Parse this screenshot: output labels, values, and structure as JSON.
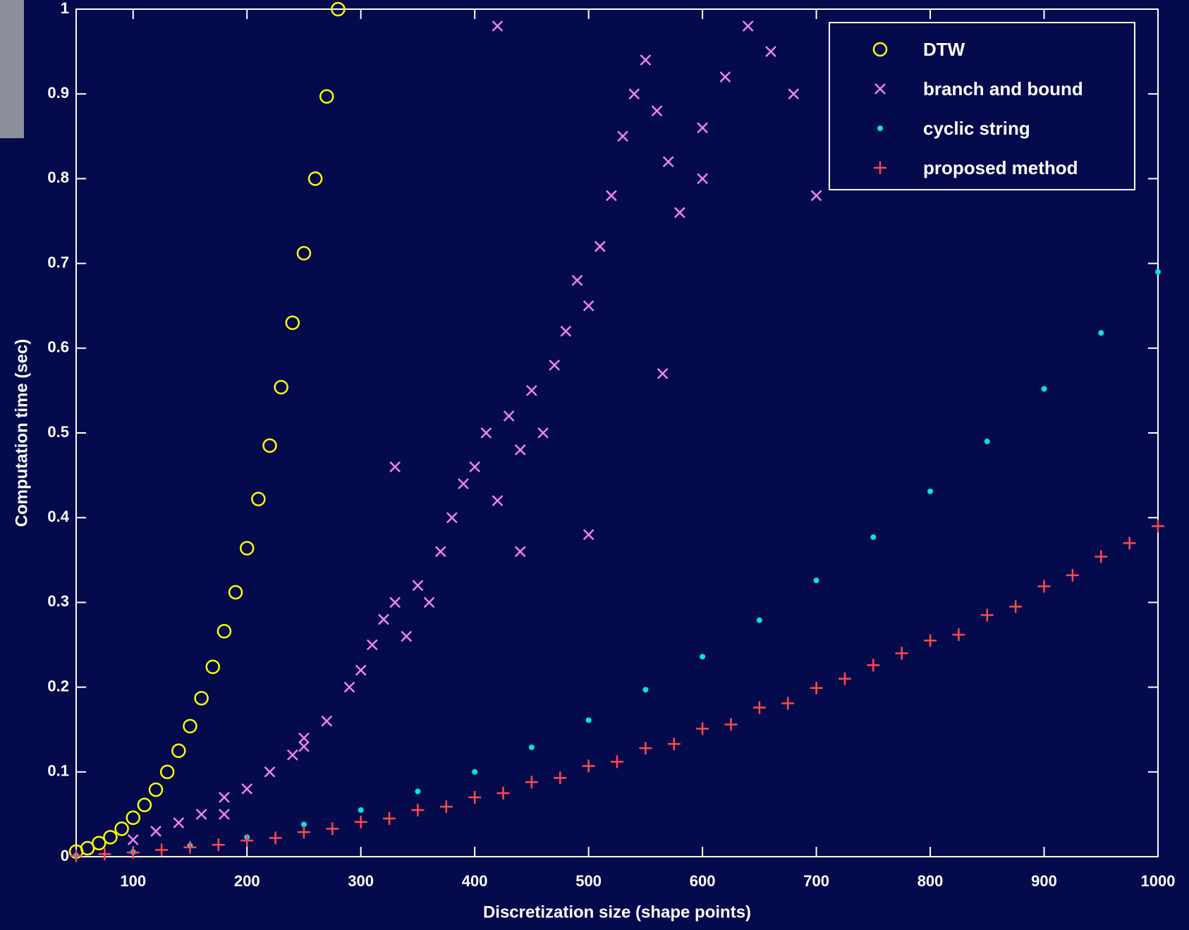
{
  "chart_data": {
    "type": "scatter",
    "x_label": "Discretization size (shape points)",
    "y_label": "Computation time (sec)",
    "xlim": [
      50,
      1000
    ],
    "ylim": [
      0,
      1
    ],
    "xticks": [
      100,
      200,
      300,
      400,
      500,
      600,
      700,
      800,
      900,
      1000
    ],
    "yticks": [
      0,
      0.1,
      0.2,
      0.3,
      0.4,
      0.5,
      0.6,
      0.7,
      0.8,
      0.9,
      1
    ],
    "legend": "upper right",
    "series": [
      {
        "name": "DTW",
        "color": "#ffff00",
        "marker": "circle",
        "x": [
          50,
          60,
          70,
          80,
          90,
          100,
          110,
          120,
          130,
          140,
          150,
          160,
          170,
          180,
          190,
          200,
          210,
          220,
          230,
          240,
          250,
          260,
          270,
          280
        ],
        "y": [
          0.006,
          0.01,
          0.016,
          0.023,
          0.033,
          0.046,
          0.061,
          0.079,
          0.1,
          0.125,
          0.154,
          0.187,
          0.224,
          0.266,
          0.312,
          0.364,
          0.422,
          0.485,
          0.554,
          0.63,
          0.712,
          0.8,
          0.897,
          1
        ]
      },
      {
        "name": "branch and bound",
        "color": "#ee82ee",
        "marker": "x",
        "x": [
          100,
          120,
          140,
          160,
          180,
          200,
          220,
          240,
          250,
          270,
          290,
          300,
          310,
          320,
          330,
          340,
          350,
          360,
          370,
          380,
          390,
          400,
          410,
          420,
          430,
          440,
          450,
          460,
          470,
          480,
          490,
          500,
          510,
          520,
          530,
          540,
          550,
          560,
          570,
          580,
          600,
          620,
          640,
          660,
          680,
          700,
          600,
          500,
          330,
          420,
          565,
          440,
          250,
          180
        ],
        "y": [
          0.02,
          0.03,
          0.04,
          0.05,
          0.07,
          0.08,
          0.1,
          0.12,
          0.14,
          0.16,
          0.2,
          0.22,
          0.25,
          0.28,
          0.3,
          0.26,
          0.32,
          0.3,
          0.36,
          0.4,
          0.44,
          0.46,
          0.5,
          0.42,
          0.52,
          0.48,
          0.55,
          0.5,
          0.58,
          0.62,
          0.68,
          0.65,
          0.72,
          0.78,
          0.85,
          0.9,
          0.94,
          0.88,
          0.82,
          0.76,
          0.8,
          0.92,
          0.98,
          0.95,
          0.9,
          0.78,
          0.86,
          0.38,
          0.46,
          0.98,
          0.57,
          0.36,
          0.13,
          0.05
        ]
      },
      {
        "name": "cyclic string",
        "color": "#00e5e5",
        "marker": "dot",
        "x": [
          50,
          100,
          150,
          200,
          250,
          300,
          350,
          400,
          450,
          500,
          550,
          600,
          650,
          700,
          750,
          800,
          850,
          900,
          950,
          1000
        ],
        "y": [
          0.0013,
          0.0055,
          0.013,
          0.023,
          0.038,
          0.055,
          0.077,
          0.1,
          0.129,
          0.161,
          0.197,
          0.236,
          0.279,
          0.326,
          0.377,
          0.431,
          0.49,
          0.552,
          0.618,
          0.69
        ]
      },
      {
        "name": "proposed method",
        "color": "#ff4a4a",
        "marker": "plus",
        "x": [
          50,
          75,
          100,
          125,
          150,
          175,
          200,
          225,
          250,
          275,
          300,
          325,
          350,
          375,
          400,
          425,
          450,
          475,
          500,
          525,
          550,
          575,
          600,
          625,
          650,
          675,
          700,
          725,
          750,
          775,
          800,
          825,
          850,
          875,
          900,
          925,
          950,
          975,
          1000
        ],
        "y": [
          0.001,
          0.003,
          0.005,
          0.008,
          0.011,
          0.014,
          0.019,
          0.022,
          0.029,
          0.033,
          0.041,
          0.045,
          0.055,
          0.059,
          0.07,
          0.075,
          0.088,
          0.093,
          0.107,
          0.112,
          0.128,
          0.133,
          0.151,
          0.156,
          0.176,
          0.181,
          0.199,
          0.21,
          0.226,
          0.24,
          0.255,
          0.262,
          0.285,
          0.295,
          0.319,
          0.332,
          0.354,
          0.37,
          0.39
        ]
      }
    ]
  }
}
